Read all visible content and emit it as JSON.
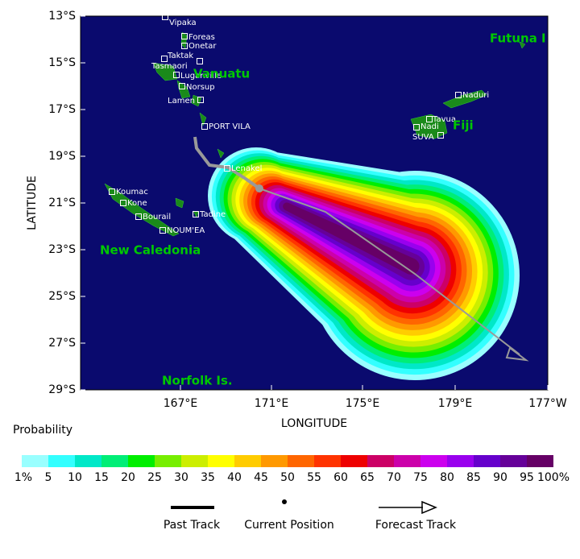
{
  "map": {
    "x_ticks": [
      "167°E",
      "171°E",
      "175°E",
      "179°E",
      "177°W"
    ],
    "y_ticks": [
      "13°S",
      "15°S",
      "17°S",
      "19°S",
      "21°S",
      "23°S",
      "25°S",
      "27°S",
      "29°S"
    ],
    "x_axis_label": "LONGITUDE",
    "y_axis_label": "LATITUDE",
    "places": [
      "Vipaka",
      "Foreas",
      "Onetar",
      "Taktak",
      "Tasmaori",
      "Luganville",
      "Norsup",
      "Lamen",
      "PORT VILA",
      "Lenakel",
      "Koumac",
      "Kone",
      "Bourail",
      "NOUM'EA",
      "Tadine",
      "Naduri",
      "Tavua",
      "Nadi",
      "SUVA"
    ],
    "regions": [
      "Vanuatu",
      "Fiji",
      "Futuna I",
      "New Caledonia",
      "Norfolk Is."
    ]
  },
  "legend": {
    "title": "Probability",
    "labels": [
      "1%",
      "5",
      "10",
      "15",
      "20",
      "25",
      "30",
      "35",
      "40",
      "45",
      "50",
      "55",
      "60",
      "65",
      "70",
      "75",
      "80",
      "85",
      "90",
      "95",
      "100%"
    ],
    "colors": [
      "#99ffff",
      "#33ffff",
      "#00e8c8",
      "#00ee77",
      "#00ee00",
      "#77ee00",
      "#ccee00",
      "#ffff00",
      "#ffcc00",
      "#ff9900",
      "#ff6600",
      "#ff3300",
      "#ee0000",
      "#cc0066",
      "#cc00aa",
      "#cc00ee",
      "#9900ee",
      "#6600cc",
      "#660099",
      "#660066"
    ]
  },
  "key": {
    "past": "Past Track",
    "current": "Current Position",
    "forecast": "Forecast Track"
  }
}
